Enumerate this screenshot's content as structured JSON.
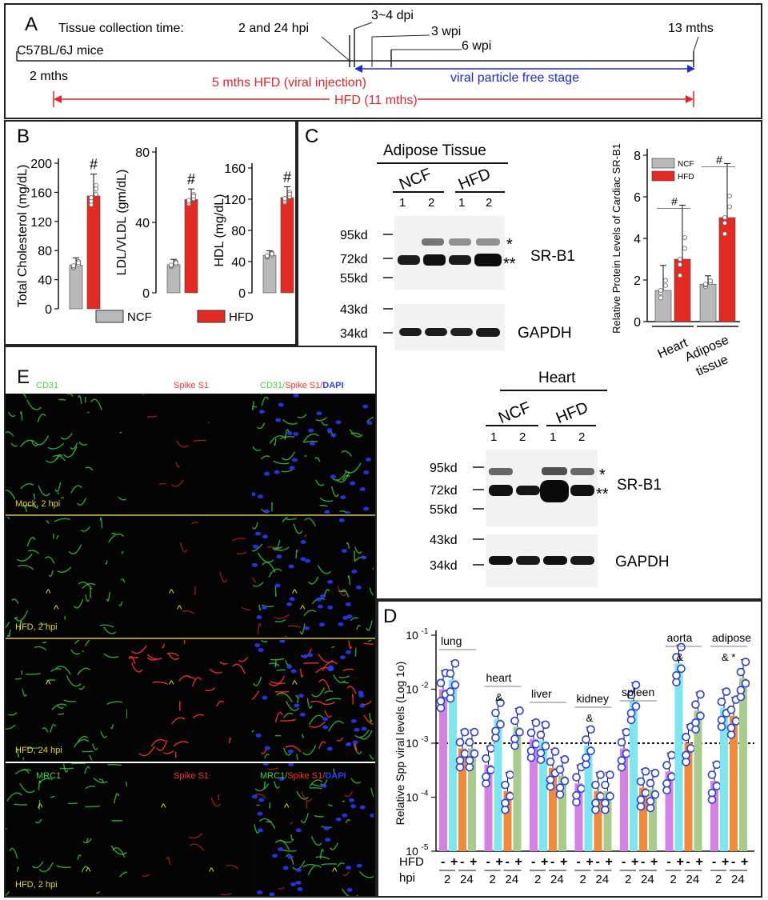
{
  "panelA": {
    "letter": "A",
    "heading": "Tissue collection time:",
    "mice": "C57BL/6J mice",
    "start": "2 mths",
    "t1": "2 and 24 hpi",
    "t2": "3~4 dpi",
    "t3": "3 wpi",
    "t4": "6 wpi",
    "end": "13 mths",
    "hfd5": "5 mths HFD (viral injection)",
    "free": "viral particle free stage",
    "hfd11": "HFD (11 mths)",
    "colors": {
      "red": "#e0262a",
      "blue": "#1f2bd6"
    }
  },
  "panelB": {
    "letter": "B",
    "legend": [
      "NCF",
      "HFD"
    ],
    "sig": "#",
    "colors": {
      "ncf": "#b9b9b9",
      "hfd": "#e32b24"
    },
    "chart_data": [
      {
        "type": "bar",
        "ylabel": "Total Cholesterol (mg/dL)",
        "ticks": [
          0,
          40,
          80,
          120,
          160,
          200
        ],
        "ylim": [
          0,
          200
        ],
        "categories": [
          "NCF",
          "HFD"
        ],
        "values": [
          60,
          155
        ],
        "errors": [
          10,
          30
        ]
      },
      {
        "type": "bar",
        "ylabel": "LDL/VLDL (gm/dL)",
        "ticks": [
          0,
          40,
          80
        ],
        "ylim": [
          0,
          80
        ],
        "categories": [
          "NCF",
          "HFD"
        ],
        "values": [
          16,
          53
        ],
        "errors": [
          3,
          6
        ]
      },
      {
        "type": "bar",
        "ylabel": "HDL (mg/dL)",
        "ticks": [
          0,
          40,
          80,
          120,
          160
        ],
        "ylim": [
          0,
          160
        ],
        "categories": [
          "NCF",
          "HFD"
        ],
        "values": [
          48,
          122
        ],
        "errors": [
          6,
          14
        ]
      }
    ]
  },
  "panelC": {
    "letter": "C",
    "blot1": {
      "title": "Adipose Tissue",
      "groups": [
        "NCF",
        "HFD"
      ],
      "lanes": [
        "1",
        "2",
        "1",
        "2"
      ],
      "markers_top": [
        "95kd",
        "72kd",
        "55kd"
      ],
      "markers_bottom": [
        "43kd",
        "34kd"
      ],
      "bands": {
        "single": "*",
        "double": "**"
      },
      "target": "SR-B1",
      "loading": "GAPDH"
    },
    "blot2": {
      "title": "Heart",
      "groups": [
        "NCF",
        "HFD"
      ],
      "lanes": [
        "1",
        "2",
        "1",
        "2"
      ],
      "markers_top": [
        "95kd",
        "72kd",
        "55kd"
      ],
      "markers_bottom": [
        "43kd",
        "34kd"
      ],
      "bands": {
        "single": "*",
        "double": "**"
      },
      "target": "SR-B1",
      "loading": "GAPDH"
    },
    "chart_data": {
      "type": "bar",
      "ylabel": "Relative Protein Levels of Cardiac SR-B1",
      "ticks": [
        0,
        2,
        4,
        6,
        8
      ],
      "ylim": [
        0,
        8
      ],
      "categories": [
        "Heart",
        "Adipose tissue"
      ],
      "series": [
        {
          "name": "NCF",
          "values": [
            1.5,
            1.8
          ],
          "errors": [
            1.2,
            0.4
          ]
        },
        {
          "name": "HFD",
          "values": [
            3.0,
            5.0
          ],
          "errors": [
            2.6,
            2.6
          ]
        }
      ],
      "sig": [
        "#",
        "#"
      ]
    }
  },
  "panelD": {
    "letter": "D",
    "ylabel": "Relative Spp viral levels (Log 1o)",
    "y_ticks": [
      "10-1",
      "10-2",
      "10-3",
      "10-4",
      "10-5"
    ],
    "row_hfd": "HFD",
    "row_hpi": "hpi",
    "signs": [
      "-",
      "+",
      "-",
      "+"
    ],
    "hpi_values": [
      "2",
      "24"
    ],
    "chart_data": {
      "type": "bar",
      "scale": "log10",
      "ylim": [
        1e-05,
        0.1
      ],
      "threshold": 0.001,
      "categories": [
        "lung",
        "heart",
        "liver",
        "kidney",
        "spleen",
        "aorta",
        "adipose"
      ],
      "series": [
        {
          "values": [
            0.01,
            0.0004,
            0.0012,
            0.00018,
            0.0008,
            0.0003,
            0.0002
          ]
        },
        {
          "values": [
            0.015,
            0.0028,
            0.0011,
            0.0009,
            0.006,
            0.03,
            0.0045
          ]
        },
        {
          "values": [
            0.0008,
            0.00013,
            0.00035,
            0.00013,
            0.00015,
            0.001,
            0.0032
          ]
        },
        {
          "values": [
            0.0008,
            0.002,
            0.00025,
            0.00013,
            0.00014,
            0.004,
            0.016
          ]
        }
      ],
      "marks": {
        "heart": "&",
        "kidney": "&",
        "aorta": "&",
        "adipose": "& *"
      },
      "colors": [
        "#d580e4",
        "#7ee6f0",
        "#f08a3a",
        "#a9cc8e"
      ]
    }
  },
  "panelE": {
    "letter": "E",
    "cols_top": [
      "CD31",
      "Spike S1",
      "CD31/",
      "Spike S1/",
      "DAPI"
    ],
    "cols_bottom": [
      "MRC1",
      "Spike S1",
      "MRC1/",
      "Spike S1/",
      "DAPI"
    ],
    "rows": [
      "Mock, 2 hpi",
      "HFD, 2 hpi",
      "HFD, 24 hpi",
      "HFD, 2 hpi"
    ],
    "arrow": "^",
    "colors": {
      "green": "#3fd53f",
      "red": "#ff3030",
      "blue": "#2a3cff",
      "yellow": "#e8d42a"
    }
  }
}
